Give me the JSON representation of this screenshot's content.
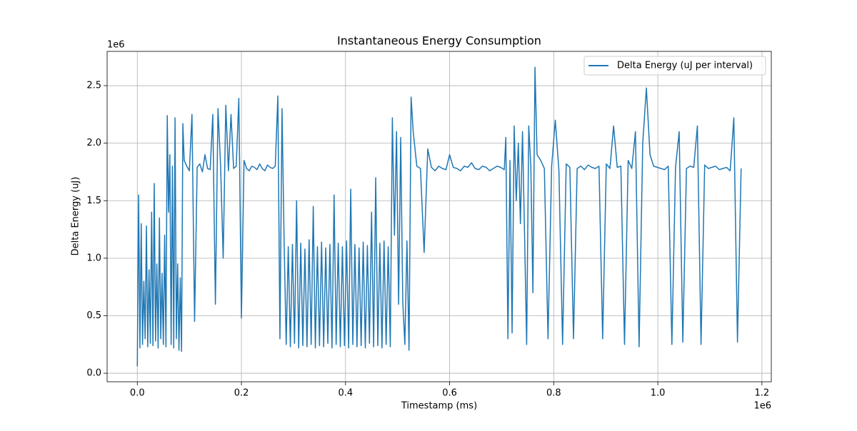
{
  "chart_data": {
    "type": "line",
    "title": "Instantaneous Energy Consumption",
    "x_label": "Timestamp (ms)",
    "y_label": "Delta Energy (uJ)",
    "x_offset_label": "1e6",
    "y_offset_label": "1e6",
    "xlim": [
      -58000,
      1218000
    ],
    "ylim": [
      -74000,
      2798000
    ],
    "xticks": [
      {
        "value": 0,
        "label": "0.0"
      },
      {
        "value": 200000,
        "label": "0.2"
      },
      {
        "value": 400000,
        "label": "0.4"
      },
      {
        "value": 600000,
        "label": "0.6"
      },
      {
        "value": 800000,
        "label": "0.8"
      },
      {
        "value": 1000000,
        "label": "1.0"
      },
      {
        "value": 1200000,
        "label": "1.2"
      }
    ],
    "yticks": [
      {
        "value": 0,
        "label": "0.0"
      },
      {
        "value": 500000,
        "label": "0.5"
      },
      {
        "value": 1000000,
        "label": "1.0"
      },
      {
        "value": 1500000,
        "label": "1.5"
      },
      {
        "value": 2000000,
        "label": "2.0"
      },
      {
        "value": 2500000,
        "label": "2.5"
      }
    ],
    "grid": true,
    "legend_position": "upper right",
    "x": [
      0,
      2500,
      5000,
      7500,
      10000,
      12500,
      15000,
      17500,
      20000,
      22500,
      25000,
      27500,
      30000,
      32500,
      35000,
      37500,
      40000,
      42500,
      45000,
      47500,
      50000,
      52500,
      55000,
      57500,
      60000,
      62500,
      65000,
      67500,
      70000,
      72500,
      75000,
      77500,
      80000,
      82500,
      85000,
      87500,
      90000,
      95000,
      100000,
      105000,
      110000,
      115000,
      120000,
      125000,
      130000,
      135000,
      140000,
      145000,
      150000,
      155000,
      160000,
      165000,
      170000,
      175000,
      180000,
      185000,
      190000,
      195000,
      200000,
      205000,
      210000,
      215000,
      220000,
      225000,
      230000,
      235000,
      240000,
      245000,
      250000,
      255000,
      260000,
      265000,
      270000,
      274000,
      278000,
      282000,
      286000,
      290000,
      294000,
      298000,
      302000,
      306000,
      310000,
      314000,
      318000,
      322000,
      326000,
      330000,
      334000,
      338000,
      342000,
      346000,
      350000,
      354000,
      358000,
      362000,
      366000,
      370000,
      374000,
      378000,
      382000,
      386000,
      390000,
      394000,
      398000,
      402000,
      406000,
      410000,
      414000,
      418000,
      422000,
      426000,
      430000,
      434000,
      438000,
      442000,
      446000,
      450000,
      454000,
      458000,
      462000,
      466000,
      470000,
      474000,
      478000,
      482000,
      486000,
      490000,
      494000,
      498000,
      502000,
      506000,
      510000,
      514000,
      518000,
      522000,
      526000,
      530000,
      537000,
      544000,
      551000,
      558000,
      565000,
      572000,
      579000,
      586000,
      593000,
      600000,
      607000,
      614000,
      621000,
      628000,
      635000,
      642000,
      649000,
      656000,
      663000,
      670000,
      677000,
      684000,
      691000,
      698000,
      705000,
      708000,
      712000,
      716000,
      720000,
      724000,
      728000,
      732000,
      736000,
      740000,
      744000,
      748000,
      752000,
      756000,
      760000,
      764000,
      768000,
      775000,
      782000,
      789000,
      796000,
      803000,
      810000,
      817000,
      824000,
      831000,
      838000,
      845000,
      852000,
      859000,
      866000,
      873000,
      880000,
      887000,
      894000,
      901000,
      908000,
      915000,
      922000,
      929000,
      936000,
      943000,
      950000,
      957000,
      964000,
      971000,
      978000,
      985000,
      992000,
      999000,
      1006000,
      1013000,
      1020000,
      1027000,
      1034000,
      1041000,
      1048000,
      1055000,
      1062000,
      1069000,
      1076000,
      1083000,
      1090000,
      1097000,
      1104000,
      1111000,
      1118000,
      1125000,
      1132000,
      1139000,
      1146000,
      1153000,
      1160000
    ],
    "series": [
      {
        "name": "Delta Energy (uJ per interval)",
        "color": "#1f77b4",
        "values": [
          60000,
          1550000,
          220000,
          1300000,
          250000,
          800000,
          300000,
          1280000,
          230000,
          900000,
          260000,
          1400000,
          240000,
          1650000,
          280000,
          950000,
          220000,
          1350000,
          300000,
          870000,
          250000,
          1200000,
          230000,
          2240000,
          1400000,
          1900000,
          250000,
          1800000,
          220000,
          2220000,
          300000,
          950000,
          200000,
          830000,
          190000,
          2170000,
          1850000,
          1800000,
          1760000,
          2250000,
          450000,
          1790000,
          1820000,
          1750000,
          1900000,
          1780000,
          1770000,
          2250000,
          600000,
          2300000,
          1800000,
          1000000,
          2330000,
          1760000,
          2250000,
          1780000,
          1800000,
          2390000,
          480000,
          1850000,
          1780000,
          1760000,
          1800000,
          1790000,
          1770000,
          1820000,
          1780000,
          1760000,
          1810000,
          1790000,
          1780000,
          1800000,
          2410000,
          300000,
          2300000,
          1150000,
          250000,
          1100000,
          230000,
          1120000,
          260000,
          1500000,
          220000,
          1130000,
          240000,
          1080000,
          230000,
          1160000,
          250000,
          1450000,
          220000,
          1100000,
          240000,
          1140000,
          230000,
          1090000,
          260000,
          1120000,
          220000,
          1550000,
          250000,
          1130000,
          230000,
          1100000,
          240000,
          1150000,
          220000,
          1600000,
          250000,
          1120000,
          230000,
          1090000,
          240000,
          1140000,
          220000,
          1110000,
          260000,
          1400000,
          230000,
          1700000,
          240000,
          1130000,
          220000,
          1150000,
          250000,
          1100000,
          230000,
          2220000,
          1200000,
          2100000,
          600000,
          2050000,
          620000,
          250000,
          1150000,
          200000,
          2400000,
          2100000,
          1800000,
          1780000,
          1050000,
          1950000,
          1790000,
          1760000,
          1800000,
          1780000,
          1770000,
          1900000,
          1790000,
          1780000,
          1760000,
          1800000,
          1790000,
          1830000,
          1780000,
          1770000,
          1800000,
          1790000,
          1760000,
          1780000,
          1800000,
          1790000,
          1770000,
          2050000,
          300000,
          1850000,
          350000,
          2150000,
          1500000,
          2000000,
          1300000,
          2100000,
          1200000,
          250000,
          2150000,
          1800000,
          700000,
          2660000,
          1900000,
          1850000,
          1780000,
          300000,
          1800000,
          2200000,
          1760000,
          250000,
          1820000,
          1790000,
          300000,
          1780000,
          1800000,
          1770000,
          1810000,
          1790000,
          1780000,
          1800000,
          300000,
          1820000,
          1780000,
          2150000,
          1790000,
          1800000,
          250000,
          1850000,
          1780000,
          2100000,
          230000,
          2000000,
          2480000,
          1900000,
          1800000,
          1790000,
          1780000,
          1770000,
          1800000,
          250000,
          1790000,
          2100000,
          270000,
          1780000,
          1800000,
          1790000,
          2150000,
          250000,
          1810000,
          1780000,
          1790000,
          1800000,
          1770000,
          1780000,
          1790000,
          1760000,
          2220000,
          270000,
          1780000
        ]
      }
    ]
  }
}
